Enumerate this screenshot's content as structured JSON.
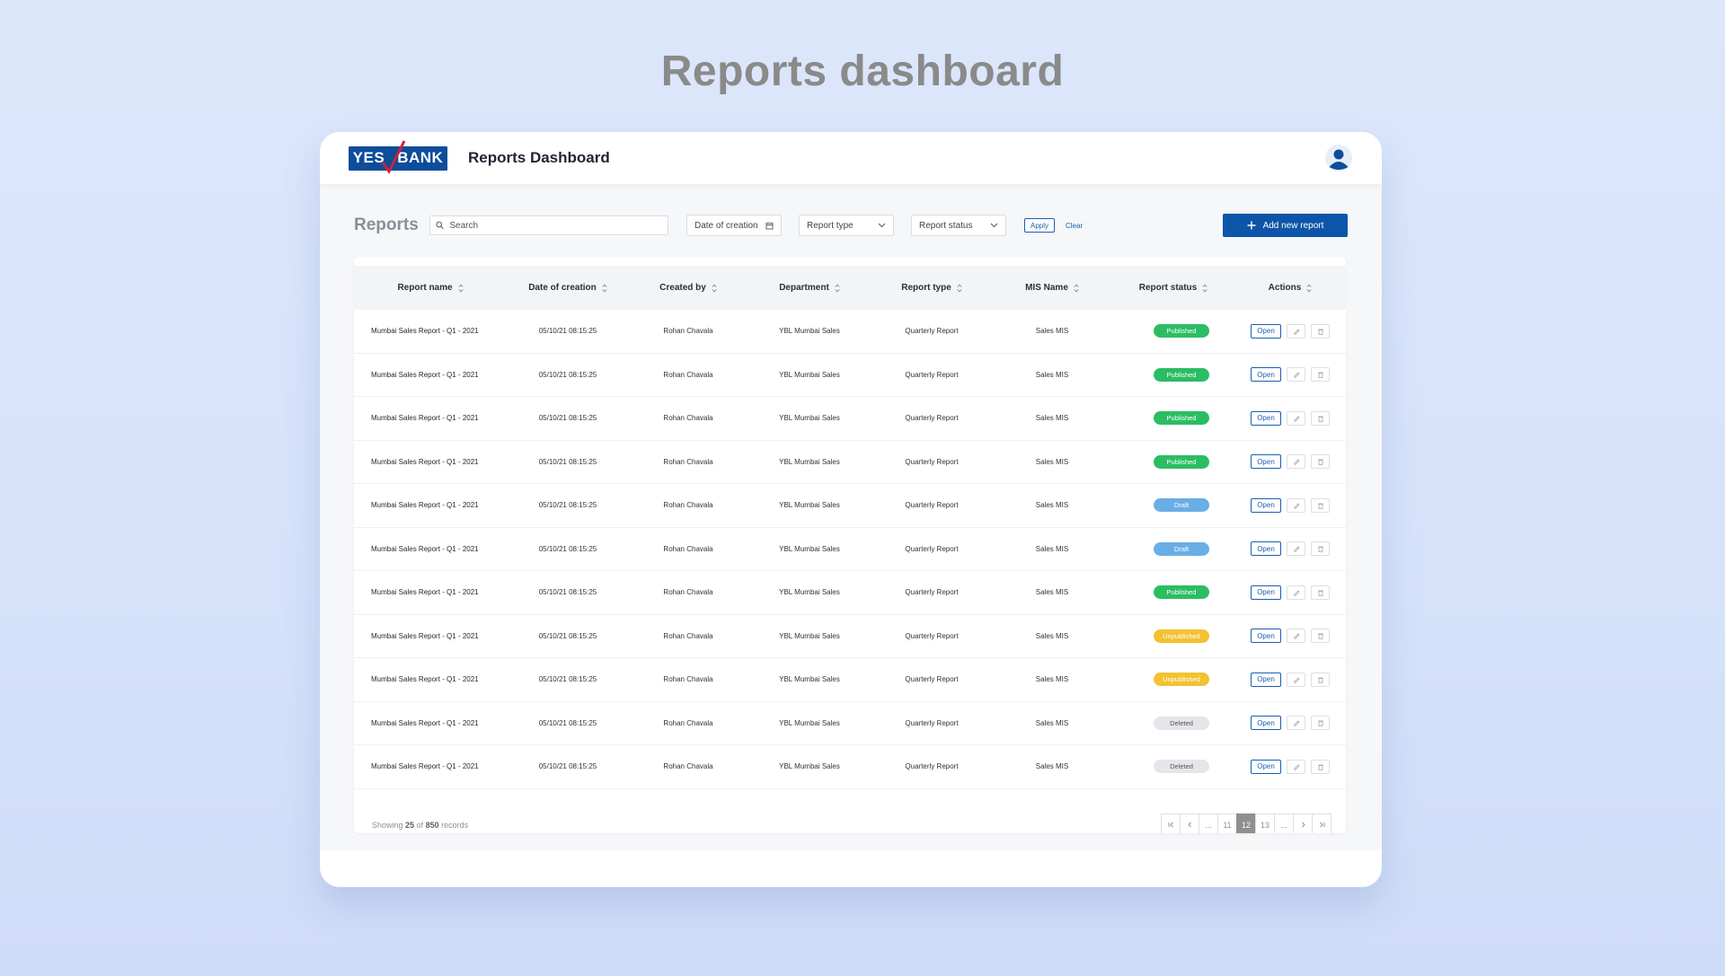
{
  "page": {
    "heading": "Reports dashboard"
  },
  "header": {
    "logo_left": "YES",
    "logo_right": "BANK",
    "app_title": "Reports Dashboard"
  },
  "filters": {
    "section_title": "Reports",
    "search_placeholder": "Search",
    "date_label": "Date of creation",
    "type_label": "Report type",
    "status_label": "Report status",
    "apply_label": "Apply",
    "clear_label": "Clear",
    "add_label": "Add new report"
  },
  "table": {
    "columns": [
      "Report name",
      "Date of creation",
      "Created by",
      "Department",
      "Report type",
      "MIS Name",
      "Report status",
      "Actions"
    ],
    "open_label": "Open",
    "rows": [
      {
        "name": "Mumbai Sales Report - Q1 - 2021",
        "date": "05/10/21 08:15:25",
        "created_by": "Rohan Chavala",
        "department": "YBL Mumbai Sales",
        "type": "Quarterly Report",
        "mis": "Sales MIS",
        "status": "Published"
      },
      {
        "name": "Mumbai Sales Report - Q1 - 2021",
        "date": "05/10/21 08:15:25",
        "created_by": "Rohan Chavala",
        "department": "YBL Mumbai Sales",
        "type": "Quarterly Report",
        "mis": "Sales MIS",
        "status": "Published"
      },
      {
        "name": "Mumbai Sales Report - Q1 - 2021",
        "date": "05/10/21 08:15:25",
        "created_by": "Rohan Chavala",
        "department": "YBL Mumbai Sales",
        "type": "Quarterly Report",
        "mis": "Sales MIS",
        "status": "Published"
      },
      {
        "name": "Mumbai Sales Report - Q1 - 2021",
        "date": "05/10/21 08:15:25",
        "created_by": "Rohan Chavala",
        "department": "YBL Mumbai Sales",
        "type": "Quarterly Report",
        "mis": "Sales MIS",
        "status": "Published"
      },
      {
        "name": "Mumbai Sales Report - Q1 - 2021",
        "date": "05/10/21 08:15:25",
        "created_by": "Rohan Chavala",
        "department": "YBL Mumbai Sales",
        "type": "Quarterly Report",
        "mis": "Sales MIS",
        "status": "Draft"
      },
      {
        "name": "Mumbai Sales Report - Q1 - 2021",
        "date": "05/10/21 08:15:25",
        "created_by": "Rohan Chavala",
        "department": "YBL Mumbai Sales",
        "type": "Quarterly Report",
        "mis": "Sales MIS",
        "status": "Draft"
      },
      {
        "name": "Mumbai Sales Report - Q1 - 2021",
        "date": "05/10/21 08:15:25",
        "created_by": "Rohan Chavala",
        "department": "YBL Mumbai Sales",
        "type": "Quarterly Report",
        "mis": "Sales MIS",
        "status": "Published"
      },
      {
        "name": "Mumbai Sales Report - Q1 - 2021",
        "date": "05/10/21 08:15:25",
        "created_by": "Rohan Chavala",
        "department": "YBL Mumbai Sales",
        "type": "Quarterly Report",
        "mis": "Sales MIS",
        "status": "Unpublished"
      },
      {
        "name": "Mumbai Sales Report - Q1 - 2021",
        "date": "05/10/21 08:15:25",
        "created_by": "Rohan Chavala",
        "department": "YBL Mumbai Sales",
        "type": "Quarterly Report",
        "mis": "Sales MIS",
        "status": "Unpublished"
      },
      {
        "name": "Mumbai Sales Report - Q1 - 2021",
        "date": "05/10/21 08:15:25",
        "created_by": "Rohan Chavala",
        "department": "YBL Mumbai Sales",
        "type": "Quarterly Report",
        "mis": "Sales MIS",
        "status": "Deleted"
      },
      {
        "name": "Mumbai Sales Report - Q1 - 2021",
        "date": "05/10/21 08:15:25",
        "created_by": "Rohan Chavala",
        "department": "YBL Mumbai Sales",
        "type": "Quarterly Report",
        "mis": "Sales MIS",
        "status": "Deleted"
      }
    ]
  },
  "footer": {
    "showing_prefix": "Showing",
    "showing_count": "25",
    "showing_mid": "of",
    "showing_total": "850",
    "showing_suffix": "records",
    "pages": [
      "...",
      "11",
      "12",
      "13",
      "..."
    ],
    "active_page": "12"
  },
  "colors": {
    "brand": "#0d4d9a",
    "primary_button": "#0d55a8",
    "published": "#2bbd63",
    "draft": "#6aaee6",
    "unpublished": "#f2c233",
    "deleted": "#e4e6ea"
  }
}
